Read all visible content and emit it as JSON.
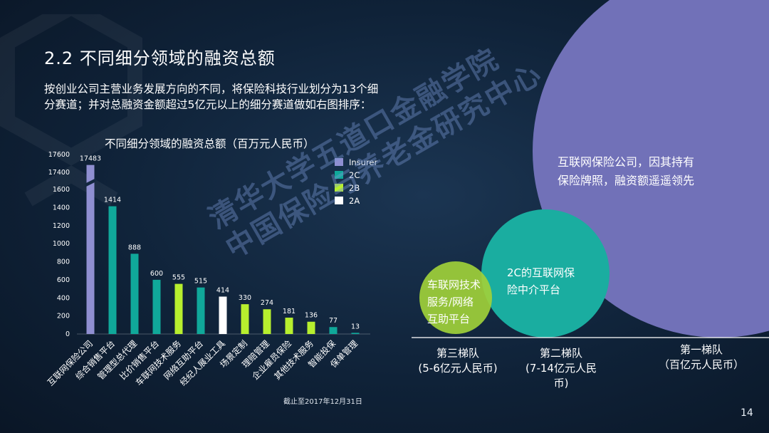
{
  "slide": {
    "title": "2.2 不同细分领域的融资总额",
    "desc_line1": "按创业公司主营业务发展方向的不同，将保险科技行业划分为13个细",
    "desc_line2": "分赛道；并对总融资金额超过5亿元以上的细分赛道做如右图排序：",
    "watermark_line1": "清华大学五道口金融学院",
    "watermark_line2": "中国保险与养老金研究中心",
    "note": "截止至2017年12月31日",
    "page_number": "14"
  },
  "colors": {
    "Insurer": "#8f8fd1",
    "2C": "#10a89a",
    "2B": "#b7ef2e",
    "2A": "#ffffff",
    "bubble_large": "#7171b8",
    "bubble_mid": "#1aada0",
    "bubble_small": "#9fd03a"
  },
  "chart_data": [
    {
      "type": "bar",
      "title": "不同细分领域的融资总额（百万元人民币）",
      "categories": [
        "互联网保险公司",
        "综合销售平台",
        "管理型总代理",
        "比价销售平台",
        "车联网技术服务",
        "网络互助平台",
        "经纪人展业工具",
        "场景定制",
        "理赔管理",
        "企业雇员保险",
        "其他技术服务",
        "智能投保",
        "保单管理"
      ],
      "values": [
        17483,
        1414,
        888,
        600,
        555,
        515,
        414,
        330,
        274,
        181,
        136,
        77,
        13
      ],
      "value_labels": [
        "17483",
        "1414",
        "888",
        "600",
        "555",
        "515",
        "414",
        "330",
        "274",
        "181",
        "136",
        "77",
        "13"
      ],
      "groups": [
        "Insurer",
        "2C",
        "2C",
        "2C",
        "2B",
        "2C",
        "2A",
        "2B",
        "2B",
        "2B",
        "2B",
        "2C",
        "2C"
      ],
      "legend": [
        "Insurer",
        "2C",
        "2B",
        "2A"
      ],
      "legend_position": "top-right",
      "y_ticks": [
        "0",
        "200",
        "400",
        "600",
        "800",
        "1000",
        "1200",
        "1400",
        "1600",
        "17400",
        "17600"
      ],
      "y_axis_break": [
        1600,
        17400
      ],
      "ylim": [
        0,
        17600
      ]
    },
    {
      "type": "bubble",
      "bubbles": [
        {
          "text_lines": [
            "车联网技术",
            "服务/网络",
            "互助平台"
          ],
          "tier_lines": [
            "第三梯队",
            "(5-6亿元人民币)"
          ],
          "relative_size": "small"
        },
        {
          "text_lines": [
            "2C的互联网保",
            "险中介平台"
          ],
          "tier_lines": [
            "第二梯队",
            "(7-14亿元人民",
            "币)"
          ],
          "relative_size": "medium"
        },
        {
          "text_lines": [
            "互联网保险公司，因其持有",
            "保险牌照，融资额遥遥领先"
          ],
          "tier_lines": [
            "第一梯队",
            "（百亿元人民币）"
          ],
          "relative_size": "large"
        }
      ]
    }
  ]
}
